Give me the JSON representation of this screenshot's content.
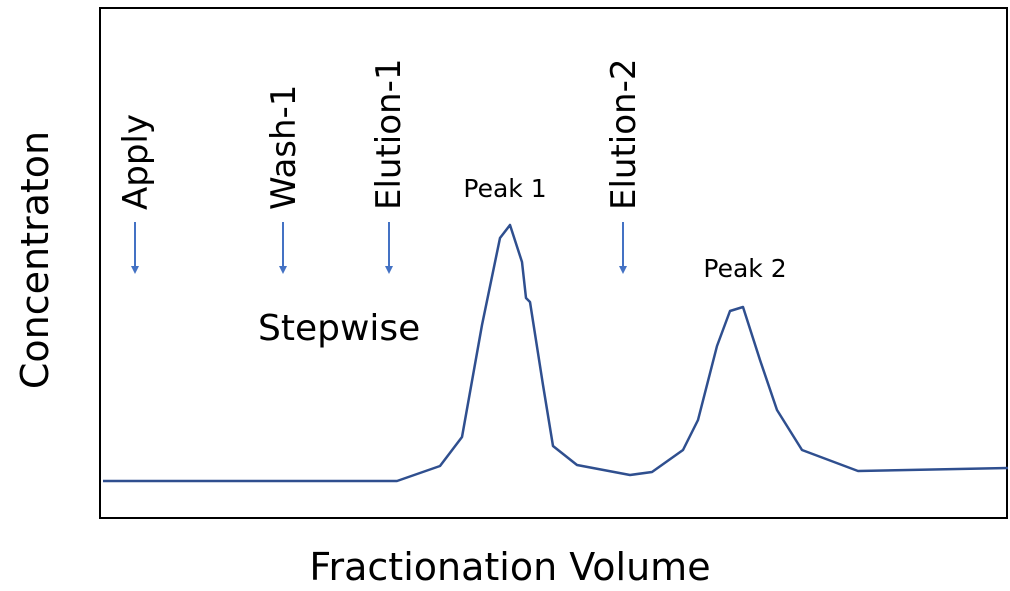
{
  "y_axis_label": "Concentraton",
  "x_axis_label": "Fractionation Volume",
  "steps": [
    "Apply",
    "Wash-1",
    "Elution-1",
    "Elution-2"
  ],
  "peaks": [
    "Peak 1",
    "Peak 2"
  ],
  "annotation": "Stepwise"
}
